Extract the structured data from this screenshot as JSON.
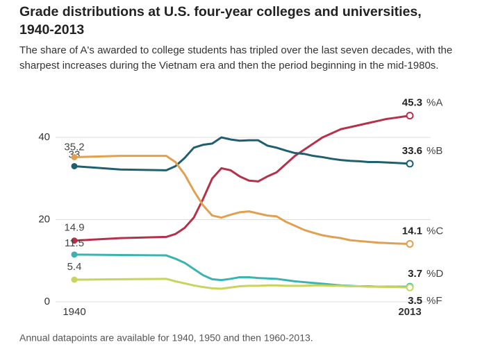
{
  "chart_data": {
    "type": "line",
    "title": "Grade distributions at U.S. four-year colleges and universities, 1940-2013",
    "subtitle": "The share of A's awarded to college students has tripled over the last seven decades, with the sharpest increases during the Vietnam era and then the period beginning in the mid-1980s.",
    "note": "Annual datapoints are available for 1940, 1950 and then 1960-2013.",
    "x": [
      1940,
      1950,
      1960,
      1962,
      1964,
      1966,
      1968,
      1970,
      1972,
      1974,
      1976,
      1978,
      1980,
      1982,
      1984,
      1986,
      1988,
      1990,
      1992,
      1994,
      1996,
      1998,
      2000,
      2002,
      2004,
      2006,
      2008,
      2010,
      2013
    ],
    "series": [
      {
        "name": "%A",
        "color": "#b5314a",
        "values": [
          14.9,
          15.5,
          15.8,
          16.5,
          18,
          20.5,
          25,
          30,
          32.5,
          32,
          30.5,
          29.5,
          29.3,
          30.5,
          31.5,
          33.5,
          35.5,
          37,
          38.5,
          40,
          41,
          42,
          42.5,
          43,
          43.5,
          44,
          44.5,
          44.8,
          45.3
        ]
      },
      {
        "name": "%B",
        "color": "#1f5f6e",
        "values": [
          33,
          32.2,
          32,
          33,
          35,
          37.5,
          38.2,
          38.5,
          40,
          39.5,
          39.2,
          39.3,
          39.3,
          38,
          37.5,
          36.8,
          36.2,
          36,
          35.5,
          35.2,
          34.8,
          34.5,
          34.3,
          34.2,
          34,
          34,
          33.9,
          33.8,
          33.6
        ]
      },
      {
        "name": "%C",
        "color": "#e0a050",
        "values": [
          35.2,
          35.5,
          35.5,
          34,
          31,
          27,
          23.5,
          21,
          20.5,
          21.2,
          21.8,
          22,
          21.5,
          21,
          20.8,
          19.5,
          18.5,
          17.5,
          16.8,
          16.2,
          15.8,
          15.5,
          15,
          14.8,
          14.6,
          14.4,
          14.3,
          14.2,
          14.1
        ]
      },
      {
        "name": "%D",
        "color": "#3bb3b0",
        "values": [
          11.5,
          11.4,
          11.3,
          10.5,
          9.5,
          8,
          6.5,
          5.5,
          5.3,
          5.6,
          6,
          6,
          5.8,
          5.7,
          5.6,
          5.3,
          5,
          4.8,
          4.6,
          4.4,
          4.2,
          4,
          3.9,
          3.8,
          3.8,
          3.7,
          3.7,
          3.7,
          3.7
        ]
      },
      {
        "name": "%F",
        "color": "#c8d45a",
        "values": [
          5.4,
          5.5,
          5.6,
          5,
          4.5,
          4,
          3.6,
          3.3,
          3.2,
          3.5,
          3.8,
          3.9,
          3.9,
          4,
          4,
          3.9,
          3.9,
          3.9,
          4,
          4,
          3.9,
          3.9,
          3.8,
          3.8,
          3.7,
          3.7,
          3.6,
          3.6,
          3.5
        ]
      }
    ],
    "xlim": [
      1940,
      2013
    ],
    "xticks": [
      1940,
      2013
    ],
    "ylim": [
      0,
      40
    ],
    "yticks": [
      0,
      20,
      40
    ],
    "grid": true
  }
}
